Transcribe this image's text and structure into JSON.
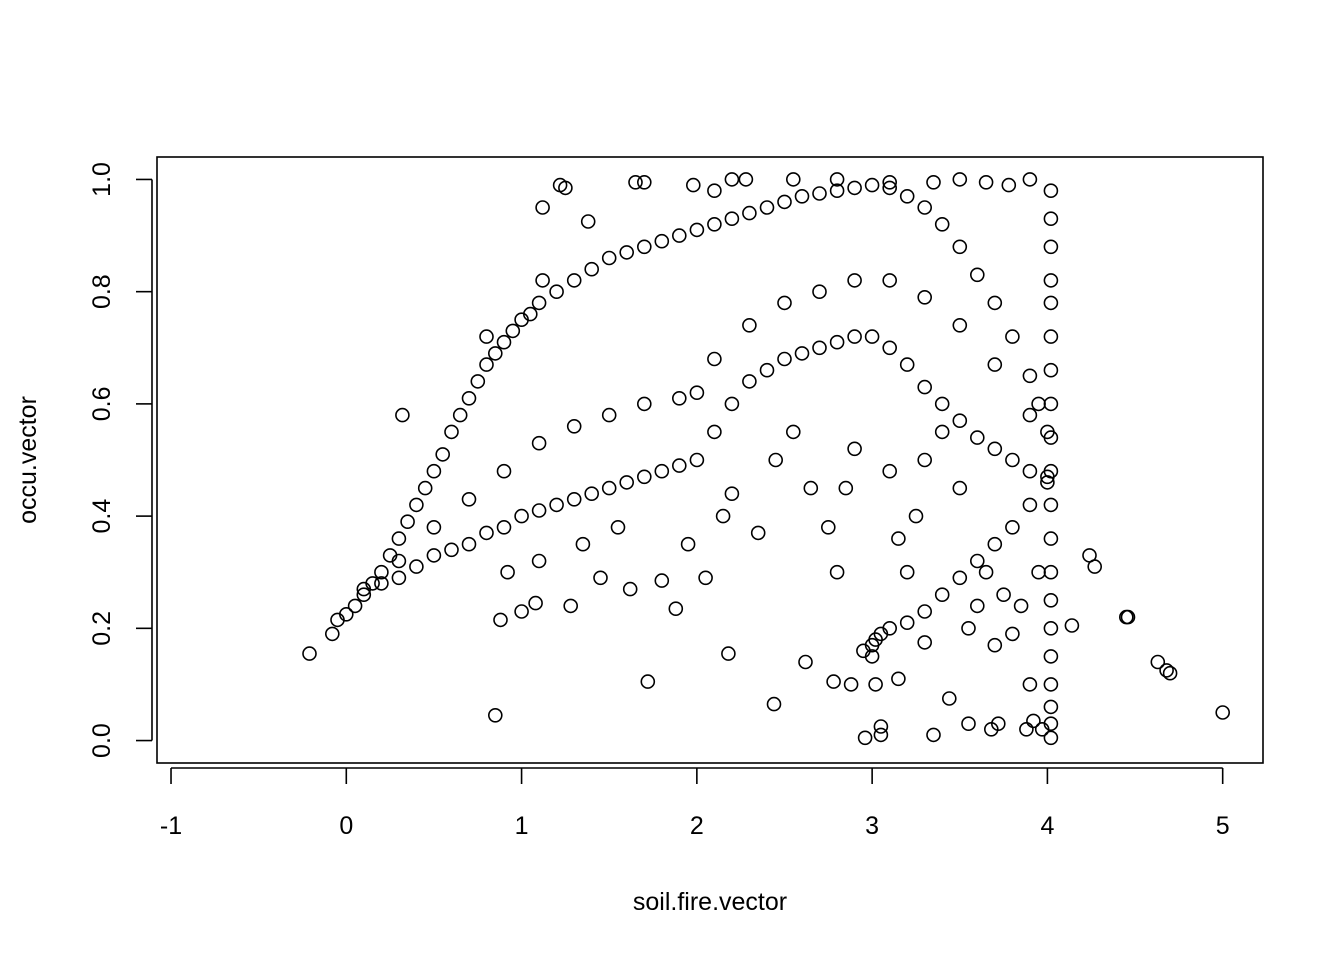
{
  "chart_data": {
    "type": "scatter",
    "title": "",
    "xlabel": "soil.fire.vector",
    "ylabel": "occu.vector",
    "xlim": [
      -1.08,
      5.23
    ],
    "ylim": [
      -0.04,
      1.04
    ],
    "xticks": [
      -1,
      0,
      1,
      2,
      3,
      4,
      5
    ],
    "yticks": [
      0.0,
      0.2,
      0.4,
      0.6,
      0.8,
      1.0
    ],
    "xtick_labels": [
      "-1",
      "0",
      "1",
      "2",
      "3",
      "4",
      "5"
    ],
    "ytick_labels": [
      "0.0",
      "0.2",
      "0.4",
      "0.6",
      "0.8",
      "1.0"
    ],
    "grid": false,
    "legend": "none",
    "marker": "open-circle",
    "point_color": "#000000",
    "series": [
      {
        "points": [
          [
            -0.21,
            0.155
          ],
          [
            -0.08,
            0.19
          ],
          [
            -0.05,
            0.215
          ],
          [
            0.0,
            0.225
          ],
          [
            0.05,
            0.24
          ],
          [
            0.1,
            0.26
          ],
          [
            0.15,
            0.28
          ],
          [
            0.2,
            0.3
          ],
          [
            0.25,
            0.33
          ],
          [
            0.3,
            0.36
          ],
          [
            0.35,
            0.39
          ],
          [
            0.4,
            0.42
          ],
          [
            0.45,
            0.45
          ],
          [
            0.5,
            0.48
          ],
          [
            0.55,
            0.51
          ],
          [
            0.6,
            0.55
          ],
          [
            0.65,
            0.58
          ],
          [
            0.7,
            0.61
          ],
          [
            0.75,
            0.64
          ],
          [
            0.8,
            0.67
          ],
          [
            0.85,
            0.69
          ],
          [
            0.9,
            0.71
          ],
          [
            0.95,
            0.73
          ],
          [
            1.0,
            0.75
          ],
          [
            1.05,
            0.76
          ],
          [
            1.1,
            0.78
          ],
          [
            1.2,
            0.8
          ],
          [
            1.3,
            0.82
          ],
          [
            1.4,
            0.84
          ],
          [
            1.5,
            0.86
          ],
          [
            1.6,
            0.87
          ],
          [
            1.7,
            0.88
          ],
          [
            1.8,
            0.89
          ],
          [
            1.9,
            0.9
          ],
          [
            2.0,
            0.91
          ],
          [
            2.1,
            0.92
          ],
          [
            2.2,
            0.93
          ],
          [
            2.3,
            0.94
          ],
          [
            2.4,
            0.95
          ],
          [
            2.5,
            0.96
          ],
          [
            2.6,
            0.97
          ],
          [
            2.7,
            0.975
          ],
          [
            2.8,
            0.98
          ],
          [
            2.9,
            0.985
          ],
          [
            3.0,
            0.99
          ],
          [
            3.1,
            0.985
          ],
          [
            3.2,
            0.97
          ],
          [
            3.3,
            0.95
          ],
          [
            3.4,
            0.92
          ],
          [
            3.5,
            0.88
          ],
          [
            3.6,
            0.83
          ],
          [
            3.7,
            0.78
          ],
          [
            3.8,
            0.72
          ],
          [
            3.9,
            0.65
          ],
          [
            3.95,
            0.6
          ],
          [
            4.0,
            0.55
          ],
          [
            0.1,
            0.27
          ],
          [
            0.2,
            0.28
          ],
          [
            0.3,
            0.29
          ],
          [
            0.4,
            0.31
          ],
          [
            0.5,
            0.33
          ],
          [
            0.6,
            0.34
          ],
          [
            0.7,
            0.35
          ],
          [
            0.8,
            0.37
          ],
          [
            0.9,
            0.38
          ],
          [
            1.0,
            0.4
          ],
          [
            1.1,
            0.41
          ],
          [
            1.2,
            0.42
          ],
          [
            1.3,
            0.43
          ],
          [
            1.4,
            0.44
          ],
          [
            1.5,
            0.45
          ],
          [
            1.6,
            0.46
          ],
          [
            1.7,
            0.47
          ],
          [
            1.8,
            0.48
          ],
          [
            1.9,
            0.49
          ],
          [
            2.0,
            0.5
          ],
          [
            2.1,
            0.55
          ],
          [
            2.2,
            0.6
          ],
          [
            2.3,
            0.64
          ],
          [
            2.4,
            0.66
          ],
          [
            2.5,
            0.68
          ],
          [
            2.6,
            0.69
          ],
          [
            2.7,
            0.7
          ],
          [
            2.8,
            0.71
          ],
          [
            2.9,
            0.72
          ],
          [
            3.0,
            0.72
          ],
          [
            3.1,
            0.7
          ],
          [
            3.2,
            0.67
          ],
          [
            3.3,
            0.63
          ],
          [
            3.4,
            0.6
          ],
          [
            3.5,
            0.57
          ],
          [
            3.6,
            0.54
          ],
          [
            3.7,
            0.52
          ],
          [
            3.8,
            0.5
          ],
          [
            3.9,
            0.48
          ],
          [
            4.0,
            0.47
          ],
          [
            0.3,
            0.32
          ],
          [
            0.5,
            0.38
          ],
          [
            0.7,
            0.43
          ],
          [
            0.9,
            0.48
          ],
          [
            1.1,
            0.53
          ],
          [
            1.3,
            0.56
          ],
          [
            1.5,
            0.58
          ],
          [
            1.7,
            0.6
          ],
          [
            1.9,
            0.61
          ],
          [
            2.0,
            0.62
          ],
          [
            2.1,
            0.68
          ],
          [
            2.3,
            0.74
          ],
          [
            2.5,
            0.78
          ],
          [
            2.7,
            0.8
          ],
          [
            2.9,
            0.82
          ],
          [
            3.1,
            0.82
          ],
          [
            3.3,
            0.79
          ],
          [
            3.5,
            0.74
          ],
          [
            3.7,
            0.67
          ],
          [
            3.9,
            0.58
          ],
          [
            3.0,
            0.15
          ],
          [
            3.0,
            0.17
          ],
          [
            3.05,
            0.19
          ],
          [
            3.1,
            0.2
          ],
          [
            3.2,
            0.21
          ],
          [
            3.3,
            0.23
          ],
          [
            3.4,
            0.26
          ],
          [
            3.5,
            0.29
          ],
          [
            3.6,
            0.32
          ],
          [
            3.7,
            0.35
          ],
          [
            3.8,
            0.38
          ],
          [
            3.9,
            0.42
          ],
          [
            4.0,
            0.46
          ],
          [
            2.95,
            0.16
          ],
          [
            3.02,
            0.18
          ],
          [
            0.32,
            0.58
          ],
          [
            0.8,
            0.72
          ],
          [
            0.85,
            0.045
          ],
          [
            0.88,
            0.215
          ],
          [
            1.0,
            0.23
          ],
          [
            1.08,
            0.245
          ],
          [
            1.12,
            0.95
          ],
          [
            1.12,
            0.82
          ],
          [
            1.22,
            0.99
          ],
          [
            1.25,
            0.985
          ],
          [
            1.28,
            0.24
          ],
          [
            1.38,
            0.925
          ],
          [
            1.65,
            0.995
          ],
          [
            1.7,
            0.995
          ],
          [
            1.72,
            0.105
          ],
          [
            1.8,
            0.285
          ],
          [
            1.88,
            0.235
          ],
          [
            2.18,
            0.155
          ],
          [
            2.44,
            0.065
          ],
          [
            2.62,
            0.14
          ],
          [
            2.78,
            0.105
          ],
          [
            2.88,
            0.1
          ],
          [
            2.96,
            0.005
          ],
          [
            3.02,
            0.1
          ],
          [
            3.05,
            0.025
          ],
          [
            3.05,
            0.01
          ],
          [
            3.15,
            0.11
          ],
          [
            3.3,
            0.175
          ],
          [
            3.35,
            0.01
          ],
          [
            3.44,
            0.075
          ],
          [
            3.55,
            0.03
          ],
          [
            3.68,
            0.02
          ],
          [
            3.72,
            0.03
          ],
          [
            3.88,
            0.02
          ],
          [
            3.92,
            0.035
          ],
          [
            3.97,
            0.02
          ],
          [
            4.14,
            0.205
          ],
          [
            4.24,
            0.33
          ],
          [
            4.27,
            0.31
          ],
          [
            4.45,
            0.22
          ],
          [
            4.46,
            0.22
          ],
          [
            4.63,
            0.14
          ],
          [
            4.68,
            0.125
          ],
          [
            4.7,
            0.12
          ],
          [
            5.0,
            0.05
          ],
          [
            4.02,
            0.98
          ],
          [
            4.02,
            0.93
          ],
          [
            4.02,
            0.88
          ],
          [
            4.02,
            0.82
          ],
          [
            4.02,
            0.78
          ],
          [
            4.02,
            0.72
          ],
          [
            4.02,
            0.66
          ],
          [
            4.02,
            0.6
          ],
          [
            4.02,
            0.54
          ],
          [
            4.02,
            0.48
          ],
          [
            4.02,
            0.42
          ],
          [
            4.02,
            0.36
          ],
          [
            4.02,
            0.3
          ],
          [
            4.02,
            0.25
          ],
          [
            4.02,
            0.2
          ],
          [
            4.02,
            0.15
          ],
          [
            4.02,
            0.1
          ],
          [
            4.02,
            0.06
          ],
          [
            4.02,
            0.03
          ],
          [
            4.02,
            0.005
          ],
          [
            2.2,
            1.0
          ],
          [
            2.28,
            1.0
          ],
          [
            2.55,
            1.0
          ],
          [
            2.8,
            1.0
          ],
          [
            3.1,
            0.995
          ],
          [
            3.35,
            0.995
          ],
          [
            3.5,
            1.0
          ],
          [
            3.65,
            0.995
          ],
          [
            3.78,
            0.99
          ],
          [
            3.9,
            1.0
          ],
          [
            1.98,
            0.99
          ],
          [
            2.1,
            0.98
          ],
          [
            1.95,
            0.35
          ],
          [
            2.05,
            0.29
          ],
          [
            2.15,
            0.4
          ],
          [
            2.2,
            0.44
          ],
          [
            2.35,
            0.37
          ],
          [
            2.45,
            0.5
          ],
          [
            2.55,
            0.55
          ],
          [
            2.65,
            0.45
          ],
          [
            2.75,
            0.38
          ],
          [
            2.8,
            0.3
          ],
          [
            2.85,
            0.45
          ],
          [
            2.9,
            0.52
          ],
          [
            3.1,
            0.48
          ],
          [
            3.15,
            0.36
          ],
          [
            3.2,
            0.3
          ],
          [
            3.25,
            0.4
          ],
          [
            3.3,
            0.5
          ],
          [
            3.4,
            0.55
          ],
          [
            3.5,
            0.45
          ],
          [
            3.55,
            0.2
          ],
          [
            3.6,
            0.24
          ],
          [
            3.65,
            0.3
          ],
          [
            3.7,
            0.17
          ],
          [
            3.75,
            0.26
          ],
          [
            3.8,
            0.19
          ],
          [
            3.85,
            0.24
          ],
          [
            3.9,
            0.1
          ],
          [
            3.95,
            0.3
          ],
          [
            1.55,
            0.38
          ],
          [
            1.45,
            0.29
          ],
          [
            1.35,
            0.35
          ],
          [
            1.1,
            0.32
          ],
          [
            0.92,
            0.3
          ],
          [
            1.62,
            0.27
          ]
        ]
      }
    ]
  }
}
